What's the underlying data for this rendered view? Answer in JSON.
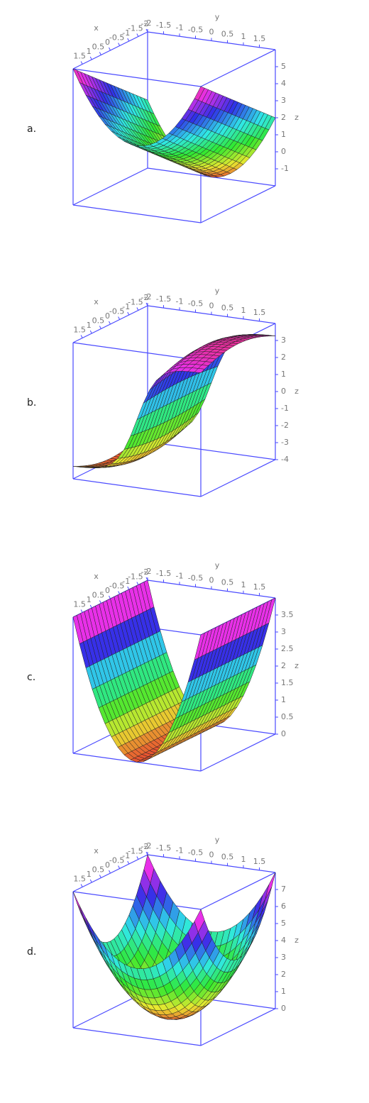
{
  "chart_data": [
    {
      "type": "surface",
      "label": "a.",
      "x_label": "x",
      "y_label": "y",
      "z_label": "z",
      "xlim": [
        -2,
        2
      ],
      "xticks": [
        1.5,
        1,
        0.5,
        0,
        -0.5,
        -1,
        -1.5,
        -2
      ],
      "ylim": [
        -2,
        2
      ],
      "yticks": [
        -2,
        -1.5,
        -1,
        -0.5,
        0,
        0.5,
        1,
        1.5
      ],
      "zlim": [
        -2,
        6
      ],
      "zticks": [
        -1,
        0,
        1,
        2,
        3,
        4,
        5
      ]
    },
    {
      "type": "surface",
      "label": "b.",
      "x_label": "x",
      "y_label": "y",
      "z_label": "z",
      "xlim": [
        -2,
        2
      ],
      "xticks": [
        1.5,
        1,
        0.5,
        0,
        -0.5,
        -1,
        -1.5,
        -2
      ],
      "ylim": [
        -2,
        2
      ],
      "yticks": [
        -2,
        -1.5,
        -1,
        -0.5,
        0,
        0.5,
        1,
        1.5
      ],
      "zlim": [
        -4,
        4
      ],
      "zticks": [
        -4,
        -3,
        -2,
        -1,
        0,
        1,
        2,
        3
      ]
    },
    {
      "type": "surface",
      "label": "c.",
      "x_label": "x",
      "y_label": "y",
      "z_label": "z",
      "xlim": [
        -2,
        2
      ],
      "xticks": [
        1.5,
        1,
        0.5,
        0,
        -0.5,
        -1,
        -1.5,
        -2
      ],
      "ylim": [
        -2,
        2
      ],
      "yticks": [
        -2,
        -1.5,
        -1,
        -0.5,
        0,
        0.5,
        1,
        1.5
      ],
      "zlim": [
        0,
        4
      ],
      "zticks": [
        0,
        0.5,
        1,
        1.5,
        2,
        2.5,
        3,
        3.5
      ]
    },
    {
      "type": "surface",
      "label": "d.",
      "x_label": "x",
      "y_label": "y",
      "z_label": "z",
      "xlim": [
        -2,
        2
      ],
      "xticks": [
        1.5,
        1,
        0.5,
        0,
        -0.5,
        -1,
        -1.5,
        -2
      ],
      "ylim": [
        -2,
        2
      ],
      "yticks": [
        -2,
        -1.5,
        -1,
        -0.5,
        0,
        0.5,
        1,
        1.5
      ],
      "zlim": [
        0,
        8
      ],
      "zticks": [
        0,
        1,
        2,
        3,
        4,
        5,
        6,
        7
      ]
    }
  ]
}
